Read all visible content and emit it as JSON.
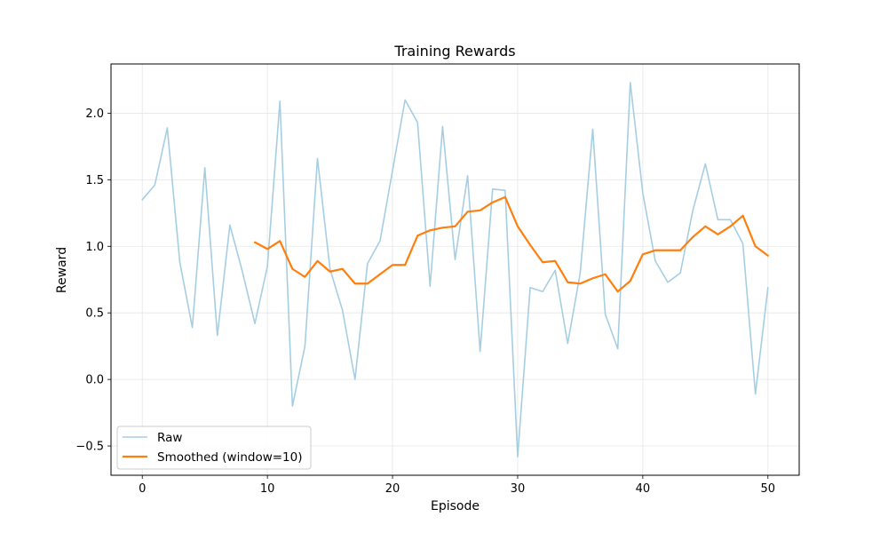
{
  "chart_data": {
    "type": "line",
    "title": "Training Rewards",
    "xlabel": "Episode",
    "ylabel": "Reward",
    "xlim": [
      -2.5,
      52.5
    ],
    "ylim": [
      -0.72,
      2.37
    ],
    "xticks": [
      0,
      10,
      20,
      30,
      40,
      50
    ],
    "yticks": [
      -0.5,
      0.0,
      0.5,
      1.0,
      1.5,
      2.0
    ],
    "ytick_labels": [
      "−0.5",
      "0.0",
      "0.5",
      "1.0",
      "1.5",
      "2.0"
    ],
    "grid": true,
    "legend_position": "lower-left",
    "series": [
      {
        "name": "Raw",
        "color": "#a6cee3",
        "x": [
          0,
          1,
          2,
          3,
          4,
          5,
          6,
          7,
          8,
          9,
          10,
          11,
          12,
          13,
          14,
          15,
          16,
          17,
          18,
          19,
          20,
          21,
          22,
          23,
          24,
          25,
          26,
          27,
          28,
          29,
          30,
          31,
          32,
          33,
          34,
          35,
          36,
          37,
          38,
          39,
          40,
          41,
          42,
          43,
          44,
          45,
          46,
          47,
          48,
          49,
          50
        ],
        "values": [
          1.35,
          1.46,
          1.89,
          0.88,
          0.39,
          1.59,
          0.33,
          1.16,
          0.81,
          0.42,
          0.85,
          2.09,
          -0.2,
          0.25,
          1.66,
          0.83,
          0.52,
          0.0,
          0.87,
          1.04,
          1.57,
          2.1,
          1.93,
          0.7,
          1.9,
          0.9,
          1.53,
          0.21,
          1.43,
          1.42,
          -0.58,
          0.69,
          0.66,
          0.82,
          0.27,
          0.8,
          1.88,
          0.49,
          0.23,
          2.23,
          1.4,
          0.89,
          0.73,
          0.8,
          1.27,
          1.62,
          1.2,
          1.2,
          1.02,
          -0.11,
          0.69
        ]
      },
      {
        "name": "Smoothed (window=10)",
        "color": "#ff7f0e",
        "x": [
          9,
          10,
          11,
          12,
          13,
          14,
          15,
          16,
          17,
          18,
          19,
          20,
          21,
          22,
          23,
          24,
          25,
          26,
          27,
          28,
          29,
          30,
          31,
          32,
          33,
          34,
          35,
          36,
          37,
          38,
          39,
          40,
          41,
          42,
          43,
          44,
          45,
          46,
          47,
          48,
          49,
          50
        ],
        "values": [
          1.03,
          0.98,
          1.04,
          0.83,
          0.77,
          0.89,
          0.81,
          0.83,
          0.72,
          0.72,
          0.79,
          0.86,
          0.86,
          1.08,
          1.12,
          1.14,
          1.15,
          1.26,
          1.27,
          1.33,
          1.37,
          1.15,
          1.01,
          0.88,
          0.89,
          0.73,
          0.72,
          0.76,
          0.79,
          0.66,
          0.74,
          0.94,
          0.97,
          0.97,
          0.97,
          1.07,
          1.15,
          1.09,
          1.15,
          1.23,
          1.0,
          0.93
        ]
      }
    ]
  }
}
